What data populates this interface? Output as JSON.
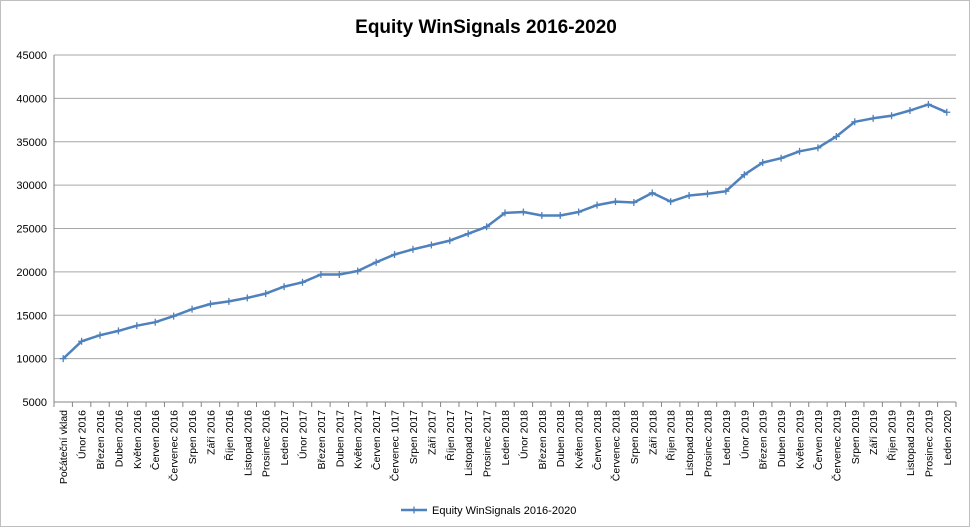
{
  "chart_data": {
    "type": "line",
    "title": "Equity WinSignals 2016-2020",
    "xlabel": "",
    "ylabel": "",
    "ylim": [
      5000,
      45000
    ],
    "yticks": [
      5000,
      10000,
      15000,
      20000,
      25000,
      30000,
      35000,
      40000,
      45000
    ],
    "grid": true,
    "legend": "bottom",
    "line_color": "#4f81bd",
    "categories": [
      "Počáteční vklad",
      "Únor 2016",
      "Březen 2016",
      "Duben 2016",
      "Květen 2016",
      "Červen 2016",
      "Červenec 2016",
      "Srpen 2016",
      "Září 2016",
      "Říjen 2016",
      "Listopad 2016",
      "Prosinec 2016",
      "Leden 2017",
      "Únor 2017",
      "Březen 2017",
      "Duben 2017",
      "Květen 2017",
      "Červen 2017",
      "Červenec 1017",
      "Srpen 2017",
      "Září 2017",
      "Říjen 2017",
      "Listopad 2017",
      "Prosinec 2017",
      "Leden 2018",
      "Únor 2018",
      "Březen 2018",
      "Duben 2018",
      "Květen 2018",
      "Červen 2018",
      "Červenec 2018",
      "Srpen 2018",
      "Září 2018",
      "Říjen 2018",
      "Listopad 2018",
      "Prosinec 2018",
      "Leden 2019",
      "Únor 2019",
      "Březen 2019",
      "Duben 2019",
      "Květen 2019",
      "Červen 2019",
      "Červenec 2019",
      "Srpen 2019",
      "Září 2019",
      "Říjen 2019",
      "Listopad 2019",
      "Prosinec 2019",
      "Leden 2020"
    ],
    "series": [
      {
        "name": "Equity WinSignals 2016-2020",
        "values": [
          10000,
          12000,
          12700,
          13200,
          13800,
          14200,
          14900,
          15700,
          16300,
          16600,
          17000,
          17500,
          18300,
          18800,
          19700,
          19700,
          20100,
          21100,
          22000,
          22600,
          23100,
          23600,
          24400,
          25200,
          26800,
          26900,
          26500,
          26500,
          26900,
          27700,
          28100,
          28000,
          29100,
          28100,
          28800,
          29000,
          29300,
          31200,
          32600,
          33100,
          33900,
          34300,
          35600,
          37300,
          37700,
          38000,
          38600,
          39300,
          38400
        ]
      }
    ]
  }
}
